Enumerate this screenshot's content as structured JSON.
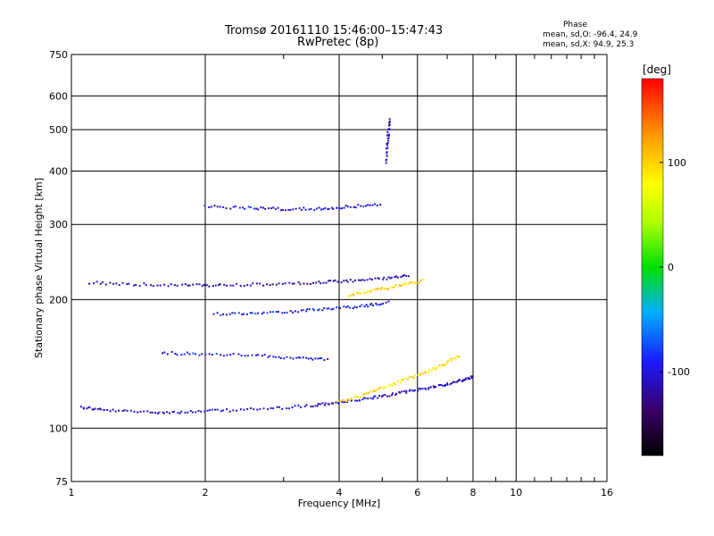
{
  "title_line1": "Tromsø 20161110 15:46:00–15:47:43",
  "title_line2": "RwPretec (8p)",
  "phase_info": {
    "header": "Phase",
    "o_mode": "mean, sd,O: -96.4, 24.9",
    "x_mode": "mean, sd,X:  94.9, 25.3"
  },
  "colorbar": {
    "unit_label": "[deg]",
    "ticks": [
      {
        "label": "100",
        "value": 100
      },
      {
        "label": "0",
        "value": 0
      },
      {
        "label": "-100",
        "value": -100
      }
    ],
    "range": [
      -180,
      180
    ]
  },
  "chart_data": {
    "type": "scatter",
    "title": "Tromsø 20161110 15:46:00–15:47:43",
    "subtitle": "RwPretec (8p)",
    "xlabel": "Frequency [MHz]",
    "ylabel": "Stationary phase Virtual Height [km]",
    "x_scale": "log",
    "y_scale": "log",
    "xlim": [
      1,
      16
    ],
    "ylim": [
      75,
      750
    ],
    "x_ticks": [
      1,
      2,
      4,
      6,
      8,
      10,
      16
    ],
    "x_tick_labels": [
      "1",
      "2",
      "4",
      "6",
      "8",
      "10",
      "16"
    ],
    "y_ticks": [
      75,
      100,
      200,
      300,
      400,
      500,
      600,
      750
    ],
    "y_tick_labels": [
      "75",
      "100",
      "200",
      "300",
      "400",
      "500",
      "600",
      "750"
    ],
    "grid": true,
    "color_by": "phase [deg]",
    "traces": [
      {
        "x": [
          1.05,
          1.2,
          1.5,
          1.8,
          2.2,
          2.8,
          3.5,
          4.0,
          4.6,
          5.3,
          6.0,
          6.8,
          7.5,
          8.0
        ],
        "y": [
          112,
          110,
          109,
          109,
          110,
          111,
          113,
          115,
          117,
          120,
          123,
          126,
          129,
          132
        ],
        "phase": -105
      },
      {
        "x": [
          1.1,
          1.4,
          1.8,
          2.2,
          2.8,
          3.5,
          4.2,
          5.0,
          5.8
        ],
        "y": [
          219,
          217,
          216,
          216,
          217,
          219,
          221,
          224,
          228
        ],
        "phase": -110
      },
      {
        "x": [
          1.6,
          2.0,
          2.6,
          3.2,
          3.8
        ],
        "y": [
          150,
          149,
          148,
          146,
          145
        ],
        "phase": -95
      },
      {
        "x": [
          2.1,
          2.6,
          3.2,
          3.8,
          4.5,
          5.2
        ],
        "y": [
          185,
          186,
          188,
          190,
          193,
          197
        ],
        "phase": -90
      },
      {
        "x": [
          2.0,
          2.5,
          3.0,
          3.6,
          4.2,
          5.0
        ],
        "y": [
          330,
          328,
          326,
          326,
          330,
          335
        ],
        "phase": -100
      },
      {
        "x": [
          4.0,
          4.6,
          5.2,
          6.0,
          6.8,
          7.5
        ],
        "y": [
          115,
          120,
          126,
          133,
          140,
          148
        ],
        "phase": 95
      },
      {
        "x": [
          4.2,
          4.8,
          5.5,
          6.2
        ],
        "y": [
          205,
          210,
          216,
          222
        ],
        "phase": 100
      },
      {
        "x": [
          5.1,
          5.15,
          5.2
        ],
        "y": [
          420,
          480,
          530
        ],
        "phase": -110
      }
    ]
  }
}
